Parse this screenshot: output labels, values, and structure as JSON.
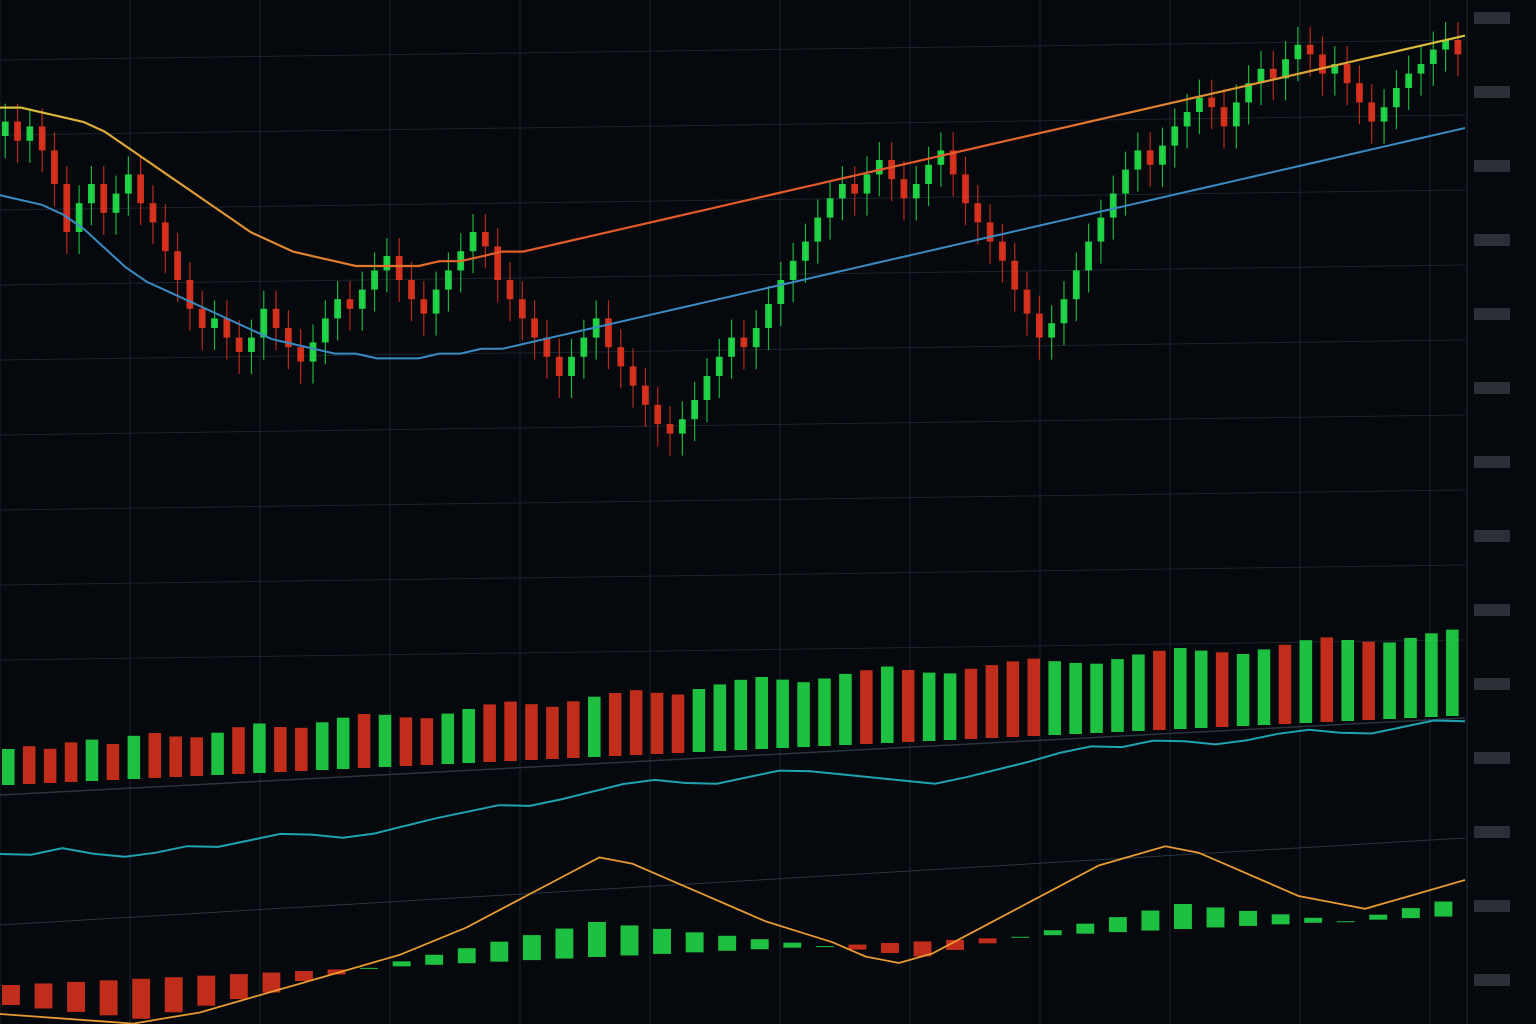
{
  "chart_data": {
    "type": "candlestick",
    "title": "",
    "xlabel": "",
    "ylabel": "",
    "grid": true,
    "price_panel": {
      "ylim": [
        0,
        100
      ],
      "candles_open_close": [
        [
          80,
          83
        ],
        [
          83,
          79
        ],
        [
          79,
          82
        ],
        [
          82,
          77
        ],
        [
          77,
          70
        ],
        [
          70,
          60
        ],
        [
          60,
          66
        ],
        [
          66,
          70
        ],
        [
          70,
          64
        ],
        [
          64,
          68
        ],
        [
          68,
          72
        ],
        [
          72,
          66
        ],
        [
          66,
          62
        ],
        [
          62,
          56
        ],
        [
          56,
          50
        ],
        [
          50,
          44
        ],
        [
          44,
          40
        ],
        [
          40,
          42
        ],
        [
          42,
          38
        ],
        [
          38,
          35
        ],
        [
          35,
          38
        ],
        [
          38,
          44
        ],
        [
          44,
          40
        ],
        [
          40,
          36
        ],
        [
          36,
          33
        ],
        [
          33,
          37
        ],
        [
          37,
          42
        ],
        [
          42,
          46
        ],
        [
          46,
          44
        ],
        [
          44,
          48
        ],
        [
          48,
          52
        ],
        [
          52,
          55
        ],
        [
          55,
          50
        ],
        [
          50,
          46
        ],
        [
          46,
          43
        ],
        [
          43,
          48
        ],
        [
          48,
          52
        ],
        [
          52,
          56
        ],
        [
          56,
          60
        ],
        [
          60,
          57
        ],
        [
          57,
          50
        ],
        [
          50,
          46
        ],
        [
          46,
          42
        ],
        [
          42,
          38
        ],
        [
          38,
          34
        ],
        [
          34,
          30
        ],
        [
          30,
          34
        ],
        [
          34,
          38
        ],
        [
          38,
          42
        ],
        [
          42,
          36
        ],
        [
          36,
          32
        ],
        [
          32,
          28
        ],
        [
          28,
          24
        ],
        [
          24,
          20
        ],
        [
          20,
          18
        ],
        [
          18,
          21
        ],
        [
          21,
          25
        ],
        [
          25,
          30
        ],
        [
          30,
          34
        ],
        [
          34,
          38
        ],
        [
          38,
          36
        ],
        [
          36,
          40
        ],
        [
          40,
          45
        ],
        [
          45,
          50
        ],
        [
          50,
          54
        ],
        [
          54,
          58
        ],
        [
          58,
          63
        ],
        [
          63,
          67
        ],
        [
          67,
          70
        ],
        [
          70,
          68
        ],
        [
          68,
          72
        ],
        [
          72,
          75
        ],
        [
          75,
          71
        ],
        [
          71,
          67
        ],
        [
          67,
          70
        ],
        [
          70,
          74
        ],
        [
          74,
          77
        ],
        [
          77,
          72
        ],
        [
          72,
          66
        ],
        [
          66,
          62
        ],
        [
          62,
          58
        ],
        [
          58,
          54
        ],
        [
          54,
          48
        ],
        [
          48,
          43
        ],
        [
          43,
          38
        ],
        [
          38,
          41
        ],
        [
          41,
          46
        ],
        [
          46,
          52
        ],
        [
          52,
          58
        ],
        [
          58,
          63
        ],
        [
          63,
          68
        ],
        [
          68,
          73
        ],
        [
          73,
          77
        ],
        [
          77,
          74
        ],
        [
          74,
          78
        ],
        [
          78,
          82
        ],
        [
          82,
          85
        ],
        [
          85,
          88
        ],
        [
          88,
          86
        ],
        [
          86,
          82
        ],
        [
          82,
          87
        ],
        [
          87,
          91
        ],
        [
          91,
          94
        ],
        [
          94,
          92
        ],
        [
          92,
          96
        ],
        [
          96,
          99
        ],
        [
          99,
          97
        ],
        [
          97,
          93
        ],
        [
          93,
          95
        ],
        [
          95,
          91
        ],
        [
          91,
          87
        ],
        [
          87,
          83
        ],
        [
          83,
          86
        ],
        [
          86,
          90
        ],
        [
          90,
          93
        ],
        [
          93,
          95
        ],
        [
          95,
          98
        ],
        [
          98,
          100
        ],
        [
          100,
          97
        ]
      ],
      "ma_short": [
        76,
        75,
        74,
        72,
        69,
        65,
        61,
        58,
        56,
        54,
        52,
        50,
        48,
        46,
        45,
        44,
        43,
        43,
        42,
        42,
        42,
        43,
        43,
        44,
        44,
        45,
        46,
        47,
        48,
        49,
        50,
        51,
        52,
        53,
        54,
        55,
        56,
        57,
        58,
        59,
        60,
        61,
        62,
        63,
        64,
        65,
        66,
        67,
        68,
        69,
        70,
        71,
        72,
        73,
        74,
        75,
        76,
        77,
        78,
        79,
        80,
        81,
        82,
        83,
        84,
        85,
        86,
        87,
        88,
        89,
        90
      ],
      "ma_long": [
        88,
        88,
        87,
        86,
        85,
        83,
        80,
        77,
        74,
        71,
        68,
        65,
        62,
        60,
        58,
        57,
        56,
        55,
        55,
        55,
        55,
        56,
        56,
        57,
        58,
        58,
        59,
        60,
        61,
        62,
        63,
        64,
        65,
        66,
        67,
        68,
        69,
        70,
        71,
        72,
        73,
        74,
        75,
        76,
        77,
        78,
        79,
        80,
        81,
        82,
        83,
        84,
        85,
        86,
        87,
        88,
        89,
        90,
        91,
        92,
        93,
        94,
        95,
        96,
        97,
        98,
        99,
        100,
        101,
        102,
        103
      ]
    },
    "volume_panel": {
      "values": [
        40,
        42,
        38,
        44,
        46,
        40,
        48,
        50,
        45,
        43,
        47,
        52,
        55,
        50,
        48,
        53,
        57,
        60,
        58,
        54,
        52,
        56,
        60,
        64,
        66,
        62,
        58,
        63,
        67,
        70,
        72,
        68,
        65,
        70,
        74,
        78,
        80,
        76,
        72,
        75,
        79,
        82,
        85,
        80,
        76,
        74,
        78,
        81,
        84,
        86,
        82,
        79,
        77,
        81,
        85,
        88,
        90,
        86,
        83,
        80,
        84,
        88,
        92,
        94,
        90,
        87,
        85,
        89,
        93,
        96
      ]
    },
    "oscillator_panel": {
      "line_values": [
        30,
        28,
        32,
        26,
        22,
        24,
        28,
        26,
        30,
        34,
        32,
        28,
        30,
        35,
        40,
        44,
        48,
        46,
        50,
        55,
        60,
        62,
        58,
        56,
        60,
        64,
        62,
        58,
        54,
        50,
        46,
        50,
        55,
        60,
        66,
        70,
        68,
        72,
        70,
        66,
        68,
        72,
        74,
        70,
        68,
        72,
        76,
        74
      ]
    },
    "macd_panel": {
      "line_values": [
        -6,
        -7,
        -8,
        -9,
        -10,
        -9,
        -8,
        -6,
        -4,
        -2,
        0,
        2,
        4,
        7,
        10,
        14,
        18,
        22,
        26,
        24,
        20,
        16,
        12,
        8,
        5,
        2,
        -2,
        -4,
        -2,
        2,
        6,
        10,
        14,
        18,
        20,
        22,
        20,
        16,
        12,
        8,
        6,
        4,
        6,
        8,
        10
      ],
      "hist_values": [
        -4,
        -5,
        -6,
        -7,
        -8,
        -7,
        -6,
        -5,
        -4,
        -2,
        -1,
        0,
        1,
        2,
        3,
        4,
        5,
        6,
        7,
        6,
        5,
        4,
        3,
        2,
        1,
        0,
        -1,
        -2,
        -3,
        -2,
        -1,
        0,
        1,
        2,
        3,
        4,
        5,
        4,
        3,
        2,
        1,
        0,
        1,
        2,
        3
      ]
    }
  },
  "colors": {
    "background": "#05080c",
    "up": "#22e04a",
    "down": "#e3341f",
    "ma_short": "#3b8bc4",
    "ma_long_start": "#d8c23c",
    "ma_long_end": "#e45a2a",
    "oscillator": "#1fa3b0",
    "macd_line": "#e89a34",
    "grid": "#1a2430"
  }
}
